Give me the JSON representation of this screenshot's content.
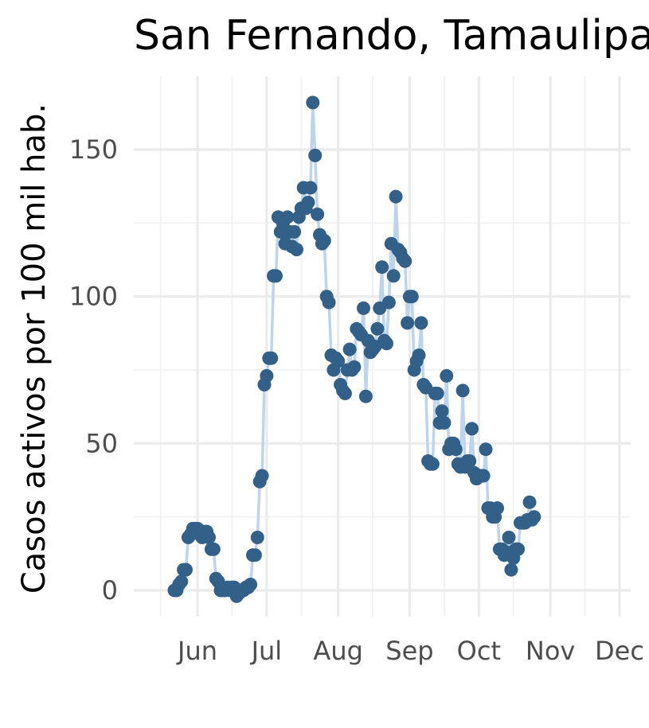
{
  "chart_data": {
    "type": "line",
    "title": "San Fernando, Tamaulipas",
    "xlabel": "",
    "ylabel": "Casos activos por 100 mil hab.",
    "ylim": [
      -8,
      175
    ],
    "y_ticks": [
      0,
      50,
      100,
      150
    ],
    "x_ticks": [
      "Jun",
      "Jul",
      "Aug",
      "Sep",
      "Oct",
      "Nov",
      "Dec"
    ],
    "start_date": "2020-05-22",
    "series": [
      {
        "name": "Casos activos",
        "line_color": "#bcd4ec",
        "point_color": "#336088",
        "values": [
          0,
          0,
          2,
          3,
          7,
          7,
          18,
          19,
          21,
          21,
          21,
          19,
          18,
          20,
          20,
          18,
          14,
          14,
          4,
          3,
          0,
          0,
          0,
          1,
          0,
          1,
          1,
          -2,
          -1,
          0,
          0,
          1,
          1,
          2,
          12,
          12,
          18,
          37,
          39,
          70,
          73,
          79,
          79,
          107,
          107,
          127,
          122,
          125,
          118,
          127,
          122,
          117,
          122,
          116,
          127,
          130,
          137,
          130,
          132,
          137,
          166,
          148,
          128,
          121,
          118,
          119,
          100,
          98,
          80,
          75,
          79,
          78,
          70,
          68,
          67,
          75,
          82,
          75,
          76,
          89,
          88,
          87,
          96,
          66,
          85,
          81,
          82,
          83,
          89,
          96,
          110,
          85,
          84,
          98,
          118,
          107,
          134,
          116,
          115,
          113,
          112,
          91,
          100,
          100,
          75,
          78,
          80,
          91,
          70,
          69,
          44,
          43,
          43,
          67,
          67,
          57,
          61,
          57,
          73,
          48,
          50,
          50,
          48,
          43,
          42,
          68,
          42,
          44,
          44,
          55,
          40,
          38,
          39,
          39,
          39,
          48,
          28,
          28,
          25,
          25,
          28,
          14,
          14,
          12,
          13,
          18,
          7,
          11,
          14,
          14,
          23,
          23,
          23,
          24,
          30,
          24,
          25
        ]
      }
    ]
  }
}
